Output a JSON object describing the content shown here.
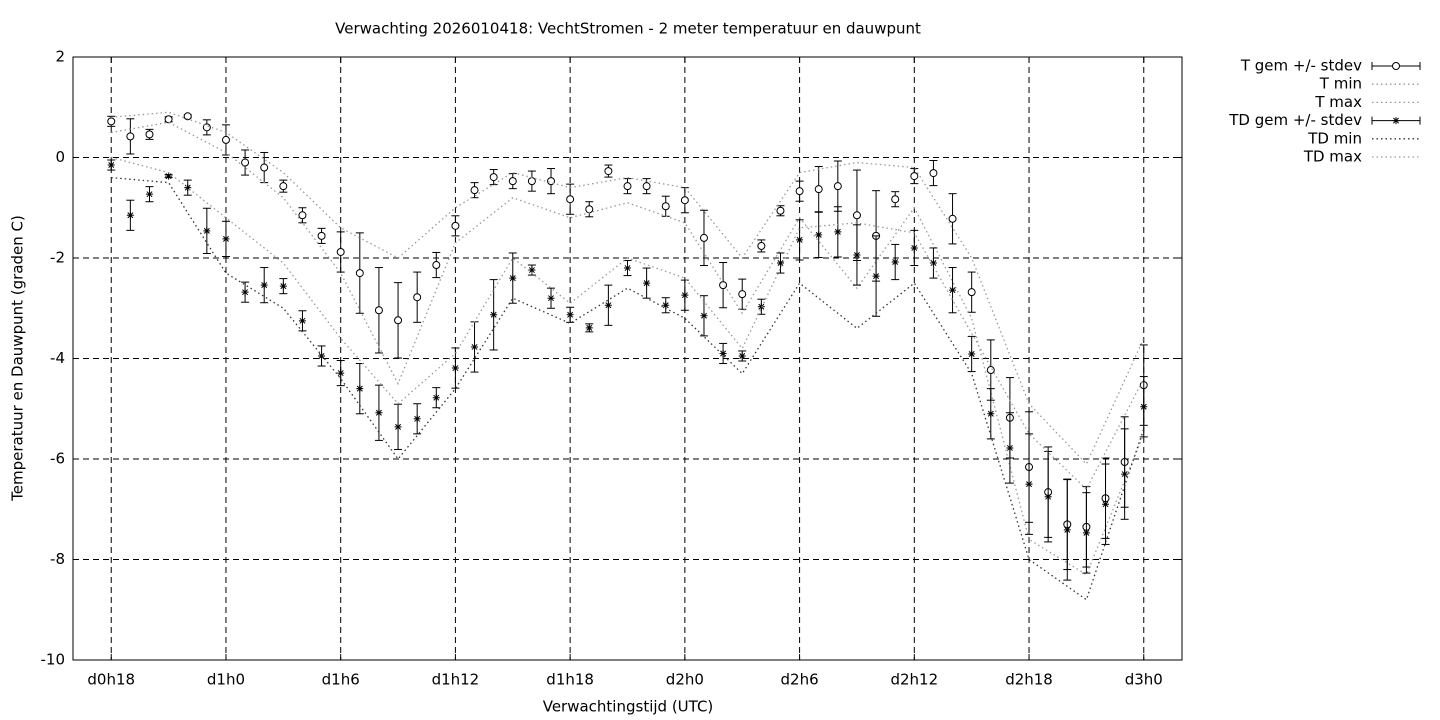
{
  "chart_data": {
    "type": "errorbar",
    "title": "Verwachting 2026010418: VechtStromen - 2 meter temperatuur en dauwpunt",
    "xlabel": "Verwachtingstijd (UTC)",
    "ylabel": "Temperatuur en Dauwpunt (graden C)",
    "xlim": [
      -2,
      56
    ],
    "ylim": [
      -10,
      2
    ],
    "xticks": [
      {
        "value": 0,
        "label": "d0h18"
      },
      {
        "value": 6,
        "label": "d1h0"
      },
      {
        "value": 12,
        "label": "d1h6"
      },
      {
        "value": 18,
        "label": "d1h12"
      },
      {
        "value": 24,
        "label": "d1h18"
      },
      {
        "value": 30,
        "label": "d2h0"
      },
      {
        "value": 36,
        "label": "d2h6"
      },
      {
        "value": 42,
        "label": "d2h12"
      },
      {
        "value": 48,
        "label": "d2h18"
      },
      {
        "value": 54,
        "label": "d3h0"
      }
    ],
    "yticks": [
      -10,
      -8,
      -6,
      -4,
      -2,
      0,
      2
    ],
    "grid": true,
    "legend": "outside-top-right",
    "x": [
      0,
      1,
      2,
      3,
      4,
      5,
      6,
      7,
      8,
      9,
      10,
      11,
      12,
      13,
      14,
      15,
      16,
      17,
      18,
      19,
      20,
      21,
      22,
      23,
      24,
      25,
      26,
      27,
      28,
      29,
      30,
      31,
      32,
      33,
      34,
      35,
      36,
      37,
      38,
      39,
      40,
      41,
      42,
      43,
      44,
      45,
      46,
      47,
      48,
      49,
      50,
      51,
      52,
      53,
      54
    ],
    "series": [
      {
        "name": "T gem +/- stdev",
        "color": "#000000",
        "marker": "circle",
        "linestyle": "none",
        "values": [
          0.72,
          0.42,
          0.46,
          0.76,
          0.82,
          0.6,
          0.35,
          -0.1,
          -0.2,
          -0.57,
          -1.15,
          -1.56,
          -1.88,
          -2.3,
          -3.04,
          -3.24,
          -2.78,
          -2.14,
          -1.36,
          -0.65,
          -0.39,
          -0.47,
          -0.47,
          -0.47,
          -0.83,
          -1.03,
          -0.27,
          -0.57,
          -0.57,
          -0.97,
          -0.85,
          -1.6,
          -2.54,
          -2.72,
          -1.76,
          -1.06,
          -0.67,
          -0.63,
          -0.57,
          -1.15,
          -1.56,
          -0.83,
          -0.37,
          -0.31,
          -1.22,
          -2.68,
          -4.23,
          -5.18,
          -6.16,
          -6.66,
          -7.3,
          -7.35,
          -6.78,
          -6.06,
          -4.53
        ],
        "errors": [
          0.1,
          0.35,
          0.1,
          0.05,
          0.03,
          0.15,
          0.3,
          0.25,
          0.3,
          0.12,
          0.15,
          0.15,
          0.4,
          0.8,
          0.85,
          0.75,
          0.5,
          0.25,
          0.2,
          0.15,
          0.15,
          0.15,
          0.2,
          0.25,
          0.3,
          0.15,
          0.12,
          0.15,
          0.15,
          0.2,
          0.25,
          0.55,
          0.45,
          0.3,
          0.12,
          0.1,
          0.2,
          0.45,
          0.5,
          0.9,
          0.9,
          0.15,
          0.15,
          0.25,
          0.5,
          0.4,
          0.6,
          0.8,
          1.1,
          0.9,
          0.9,
          0.8,
          0.8,
          0.9,
          0.8
        ]
      },
      {
        "name": "T min",
        "color": "#999999",
        "marker": "none",
        "linestyle": "dotted",
        "x": [
          0,
          3,
          6,
          9,
          12,
          15,
          18,
          21,
          24,
          27,
          30,
          33,
          36,
          39,
          42,
          45,
          48,
          51,
          54
        ],
        "values": [
          0.5,
          0.7,
          0.1,
          -0.8,
          -2.3,
          -4.5,
          -1.7,
          -0.8,
          -1.2,
          -0.9,
          -1.3,
          -3.1,
          -1.2,
          -2.6,
          -1.0,
          -3.2,
          -7.6,
          -8.3,
          -5.5
        ]
      },
      {
        "name": "T max",
        "color": "#999999",
        "marker": "none",
        "linestyle": "dotted",
        "x": [
          0,
          3,
          6,
          9,
          12,
          15,
          18,
          21,
          24,
          27,
          30,
          33,
          36,
          39,
          42,
          45,
          48,
          51,
          54
        ],
        "values": [
          0.8,
          0.9,
          0.5,
          -0.3,
          -1.4,
          -2.0,
          -1.0,
          -0.3,
          -0.6,
          -0.4,
          -0.6,
          -2.0,
          -0.3,
          -0.1,
          -0.2,
          -2.0,
          -4.9,
          -6.1,
          -3.6
        ]
      },
      {
        "name": "TD gem +/- stdev",
        "color": "#000000",
        "marker": "asterisk",
        "linestyle": "none",
        "values": [
          -0.15,
          -1.15,
          -0.73,
          -0.37,
          -0.6,
          -1.46,
          -1.62,
          -2.68,
          -2.54,
          -2.56,
          -3.25,
          -3.95,
          -4.29,
          -4.6,
          -5.08,
          -5.36,
          -5.2,
          -4.78,
          -4.19,
          -3.77,
          -3.13,
          -2.4,
          -2.24,
          -2.8,
          -3.13,
          -3.39,
          -2.94,
          -2.2,
          -2.5,
          -2.94,
          -2.74,
          -3.15,
          -3.9,
          -3.95,
          -2.97,
          -2.1,
          -1.64,
          -1.54,
          -1.48,
          -1.94,
          -2.36,
          -2.08,
          -1.8,
          -2.1,
          -2.64,
          -3.91,
          -5.1,
          -5.78,
          -6.5,
          -6.75,
          -7.41,
          -7.47,
          -6.9,
          -6.3,
          -4.96
        ],
        "errors": [
          0.1,
          0.3,
          0.15,
          0.03,
          0.15,
          0.45,
          0.35,
          0.2,
          0.35,
          0.15,
          0.2,
          0.2,
          0.25,
          0.5,
          0.55,
          0.45,
          0.3,
          0.2,
          0.4,
          0.5,
          0.7,
          0.5,
          0.1,
          0.2,
          0.15,
          0.08,
          0.4,
          0.15,
          0.3,
          0.15,
          0.3,
          0.4,
          0.2,
          0.1,
          0.15,
          0.2,
          0.4,
          0.45,
          0.5,
          0.6,
          0.8,
          0.35,
          0.35,
          0.3,
          0.45,
          0.35,
          0.5,
          0.7,
          1.0,
          0.9,
          1.0,
          0.8,
          0.8,
          0.9,
          0.6
        ]
      },
      {
        "name": "TD min",
        "color": "#333333",
        "marker": "none",
        "linestyle": "dotted",
        "x": [
          0,
          3,
          6,
          9,
          12,
          15,
          18,
          21,
          24,
          27,
          30,
          33,
          36,
          39,
          42,
          45,
          48,
          51,
          54
        ],
        "values": [
          -0.4,
          -0.5,
          -2.3,
          -3.0,
          -4.4,
          -6.0,
          -4.6,
          -2.8,
          -3.3,
          -2.6,
          -3.2,
          -4.3,
          -2.5,
          -3.4,
          -2.5,
          -4.3,
          -8.0,
          -8.8,
          -5.4
        ]
      },
      {
        "name": "TD max",
        "color": "#999999",
        "marker": "none",
        "linestyle": "dotted",
        "x": [
          0,
          3,
          6,
          9,
          12,
          15,
          18,
          21,
          24,
          27,
          30,
          33,
          36,
          39,
          42,
          45,
          48,
          51,
          54
        ],
        "values": [
          0.0,
          -0.3,
          -1.2,
          -2.1,
          -3.6,
          -4.9,
          -3.9,
          -2.0,
          -2.9,
          -2.0,
          -2.4,
          -3.8,
          -1.4,
          -1.3,
          -1.5,
          -3.5,
          -5.5,
          -6.6,
          -4.4
        ]
      }
    ]
  }
}
